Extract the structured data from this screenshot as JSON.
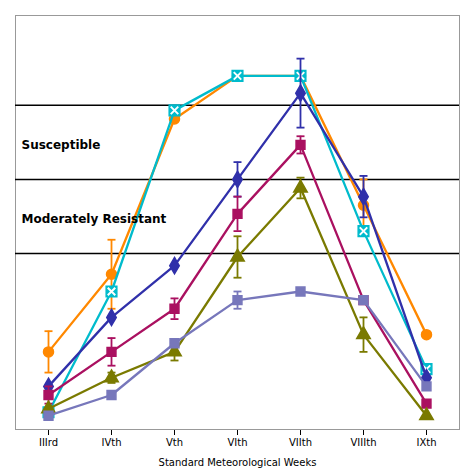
{
  "chart_data": {
    "type": "line",
    "xlabel": "Standard Meteorological Weeks",
    "categories": [
      "IIIrd",
      "IVth",
      "Vth",
      "VIth",
      "VIIth",
      "VIIIth",
      "IXth"
    ],
    "series": [
      {
        "color": "#FF8800",
        "marker": "circle",
        "values": [
          4.5,
          9.0,
          18.0,
          20.5,
          20.5,
          13.0,
          5.5
        ],
        "yerr": [
          1.2,
          2.0,
          0.0,
          0.0,
          0.0,
          1.5,
          0.0
        ]
      },
      {
        "color": "#00BBCC",
        "marker": "square-x",
        "values": [
          1.0,
          8.0,
          18.5,
          20.5,
          20.5,
          11.5,
          3.5
        ],
        "yerr": [
          0.0,
          0.0,
          0.0,
          0.0,
          0.0,
          0.0,
          0.0
        ]
      },
      {
        "color": "#3030AA",
        "marker": "diamond",
        "values": [
          2.5,
          6.5,
          9.5,
          14.5,
          19.5,
          13.5,
          3.0
        ],
        "yerr": [
          0.0,
          0.0,
          0.0,
          1.0,
          2.0,
          1.2,
          0.0
        ]
      },
      {
        "color": "#AA1060",
        "marker": "square",
        "values": [
          2.0,
          4.5,
          7.0,
          12.5,
          16.5,
          7.5,
          1.5
        ],
        "yerr": [
          0.5,
          0.8,
          0.6,
          1.0,
          0.5,
          0.0,
          0.0
        ]
      },
      {
        "color": "#7A7A00",
        "marker": "triangle",
        "values": [
          1.2,
          3.0,
          4.5,
          10.0,
          14.0,
          5.5,
          0.8
        ],
        "yerr": [
          0.0,
          0.3,
          0.5,
          1.2,
          0.6,
          1.0,
          0.0
        ]
      },
      {
        "color": "#7777BB",
        "marker": "square",
        "values": [
          0.8,
          2.0,
          5.0,
          7.5,
          8.0,
          7.5,
          2.5
        ],
        "yerr": [
          0.0,
          0.0,
          0.0,
          0.5,
          0.0,
          0.0,
          0.0
        ]
      }
    ],
    "hlines": [
      18.8,
      14.5,
      10.2
    ],
    "annotations": [
      {
        "text": "Susceptible",
        "y": 16.5
      },
      {
        "text": "Moderately Resistant",
        "y": 12.2
      }
    ],
    "ylim": [
      0,
      24
    ],
    "tick_labels": "x",
    "grid": false
  }
}
